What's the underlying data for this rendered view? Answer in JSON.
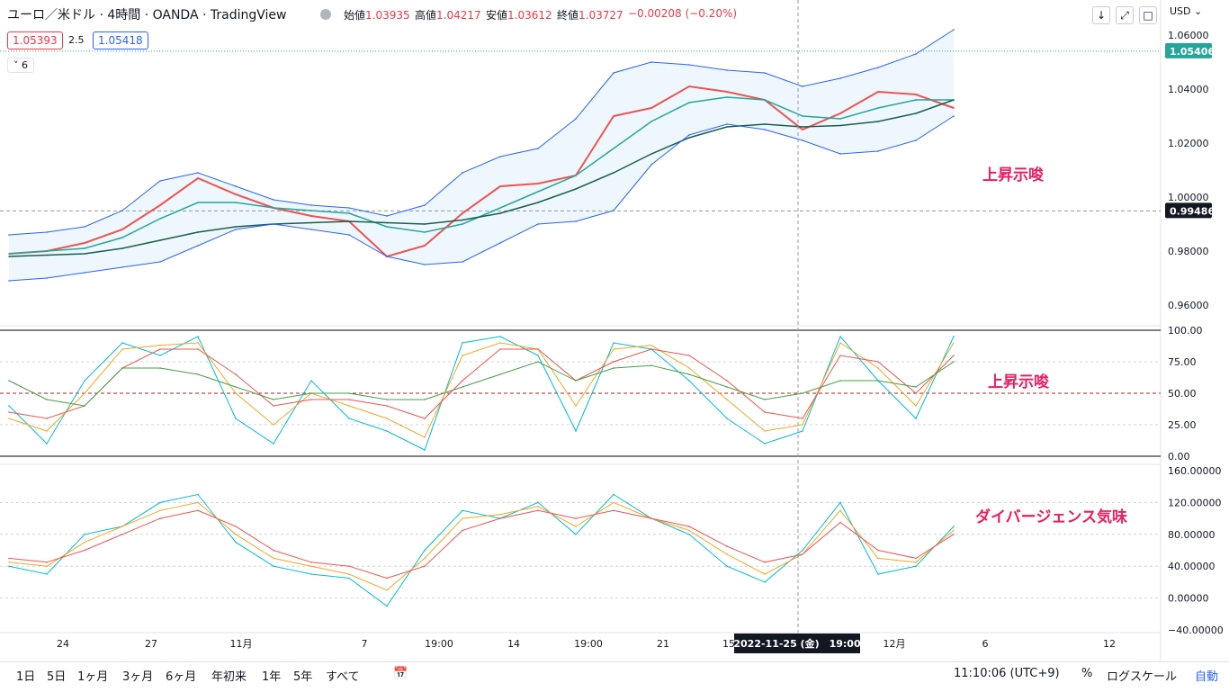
{
  "header": {
    "title": "ユーロ／米ドル · 4時間 · OANDA · TradingView",
    "ohlc": [
      {
        "label": "始値",
        "value": "1.03935"
      },
      {
        "label": "高値",
        "value": "1.04217"
      },
      {
        "label": "安値",
        "value": "1.03612"
      },
      {
        "label": "終値",
        "value": "1.03727"
      }
    ],
    "change": "−0.00208 (−0.20%)",
    "bid": "1.05393",
    "spread": "2.5",
    "ask": "1.05418",
    "collapse_label": "6",
    "currency": "USD",
    "btn_down": "↓",
    "btn_expand": "⤢",
    "btn_window": "□"
  },
  "notes": {
    "main": "上昇示唆",
    "osc1": "上昇示唆",
    "osc2": "ダイバージェンス気味"
  },
  "colors": {
    "up": "#26a69a",
    "down": "#ef5350",
    "bollinger": "#2962ff",
    "ema_slow": "#f5b041",
    "ema_mid": "#1b5e4b",
    "note": "#e91e63"
  },
  "chart_data": [
    {
      "type": "line",
      "name": "price",
      "yticks": [
        "1.06000",
        "1.04000",
        "1.02000",
        "1.00000",
        "0.98000",
        "0.96000"
      ],
      "ylim": [
        0.953,
        1.063
      ],
      "last_price": "1.05406",
      "crosshair_price": "0.99486",
      "x": [
        0,
        4,
        8,
        12,
        16,
        20,
        24,
        28,
        32,
        36,
        40,
        44,
        48,
        52,
        56,
        60,
        64,
        68,
        72,
        76,
        80,
        84,
        88,
        92,
        96,
        100
      ],
      "series": [
        {
          "values": [
            0.979,
            0.98,
            0.983,
            0.988,
            0.997,
            1.007,
            1.001,
            0.996,
            0.993,
            0.991,
            0.978,
            0.982,
            0.994,
            1.004,
            1.005,
            1.008,
            1.03,
            1.033,
            1.041,
            1.039,
            1.036,
            1.025,
            1.031,
            1.039,
            1.038,
            1.033
          ]
        },
        {
          "values": [
            0.979,
            0.98,
            0.981,
            0.985,
            0.992,
            0.998,
            0.998,
            0.996,
            0.995,
            0.994,
            0.989,
            0.987,
            0.99,
            0.996,
            1.002,
            1.008,
            1.018,
            1.028,
            1.035,
            1.037,
            1.036,
            1.03,
            1.029,
            1.033,
            1.036,
            1.036
          ]
        },
        {
          "values": [
            0.978,
            0.9785,
            0.979,
            0.981,
            0.984,
            0.987,
            0.989,
            0.99,
            0.9905,
            0.991,
            0.9905,
            0.99,
            0.9915,
            0.994,
            0.998,
            1.003,
            1.009,
            1.016,
            1.022,
            1.026,
            1.027,
            1.026,
            1.0265,
            1.028,
            1.031,
            1.036
          ]
        },
        {
          "values": [
            0.986,
            0.987,
            0.989,
            0.995,
            1.006,
            1.009,
            1.004,
            0.999,
            0.997,
            0.996,
            0.993,
            0.997,
            1.009,
            1.015,
            1.018,
            1.029,
            1.046,
            1.05,
            1.049,
            1.047,
            1.046,
            1.041,
            1.044,
            1.048,
            1.053,
            1.062
          ]
        },
        {
          "values": [
            0.969,
            0.97,
            0.972,
            0.974,
            0.976,
            0.982,
            0.988,
            0.99,
            0.988,
            0.986,
            0.978,
            0.975,
            0.976,
            0.983,
            0.99,
            0.991,
            0.995,
            1.012,
            1.023,
            1.027,
            1.025,
            1.021,
            1.016,
            1.017,
            1.021,
            1.03
          ]
        }
      ]
    },
    {
      "type": "line",
      "name": "oscillator-1",
      "yticks": [
        "100.00",
        "75.00",
        "50.00",
        "25.00",
        "0.00"
      ],
      "ylim": [
        0,
        100
      ],
      "x": [
        0,
        4,
        8,
        12,
        16,
        20,
        24,
        28,
        32,
        36,
        40,
        44,
        48,
        52,
        56,
        60,
        64,
        68,
        72,
        76,
        80,
        84,
        88,
        92,
        96,
        100
      ],
      "series": [
        {
          "values": [
            40,
            10,
            60,
            90,
            80,
            95,
            30,
            10,
            60,
            30,
            20,
            5,
            90,
            95,
            80,
            20,
            90,
            85,
            60,
            30,
            10,
            20,
            95,
            60,
            30,
            95
          ]
        },
        {
          "values": [
            30,
            20,
            50,
            85,
            88,
            90,
            50,
            25,
            50,
            40,
            30,
            15,
            80,
            90,
            85,
            40,
            85,
            88,
            70,
            45,
            20,
            25,
            90,
            70,
            40,
            90
          ]
        },
        {
          "values": [
            35,
            30,
            40,
            70,
            85,
            85,
            65,
            40,
            45,
            45,
            40,
            30,
            60,
            85,
            85,
            60,
            75,
            85,
            80,
            60,
            35,
            30,
            80,
            75,
            50,
            80
          ]
        },
        {
          "values": [
            60,
            45,
            40,
            70,
            70,
            65,
            55,
            45,
            50,
            50,
            45,
            45,
            55,
            65,
            75,
            60,
            70,
            72,
            65,
            55,
            45,
            50,
            60,
            60,
            55,
            75
          ]
        }
      ]
    },
    {
      "type": "line",
      "name": "oscillator-2",
      "yticks": [
        "160.00000",
        "120.00000",
        "80.00000",
        "40.00000",
        "0.00000",
        "−40.00000"
      ],
      "ylim": [
        -40,
        160
      ],
      "x": [
        0,
        4,
        8,
        12,
        16,
        20,
        24,
        28,
        32,
        36,
        40,
        44,
        48,
        52,
        56,
        60,
        64,
        68,
        72,
        76,
        80,
        84,
        88,
        92,
        96,
        100
      ],
      "series": [
        {
          "values": [
            40,
            30,
            80,
            90,
            120,
            130,
            70,
            40,
            30,
            25,
            -10,
            60,
            110,
            100,
            120,
            80,
            130,
            100,
            80,
            40,
            20,
            60,
            120,
            30,
            40,
            90
          ]
        },
        {
          "values": [
            45,
            40,
            70,
            90,
            110,
            120,
            80,
            50,
            40,
            30,
            10,
            50,
            100,
            105,
            115,
            90,
            120,
            100,
            85,
            55,
            30,
            55,
            110,
            50,
            45,
            85
          ]
        },
        {
          "values": [
            50,
            45,
            60,
            80,
            100,
            110,
            90,
            60,
            45,
            40,
            25,
            40,
            85,
            100,
            110,
            100,
            110,
            100,
            90,
            65,
            45,
            55,
            95,
            60,
            50,
            80
          ]
        }
      ]
    }
  ],
  "xaxis": {
    "ticks": [
      "24",
      "27",
      "11月",
      "7",
      "19:00",
      "14",
      "19:00",
      "21",
      "15",
      "12月",
      "6",
      "12"
    ],
    "crosshair_label": "2022-11-25 (金)　19:00"
  },
  "bottom": {
    "timeframes": [
      "1日",
      "5日",
      "1ヶ月",
      "3ヶ月",
      "6ヶ月",
      "年初来",
      "1年",
      "5年",
      "すべて"
    ],
    "clock": "11:10:06 (UTC+9)",
    "pct": "%",
    "logscale": "ログスケール",
    "auto": "自動"
  }
}
